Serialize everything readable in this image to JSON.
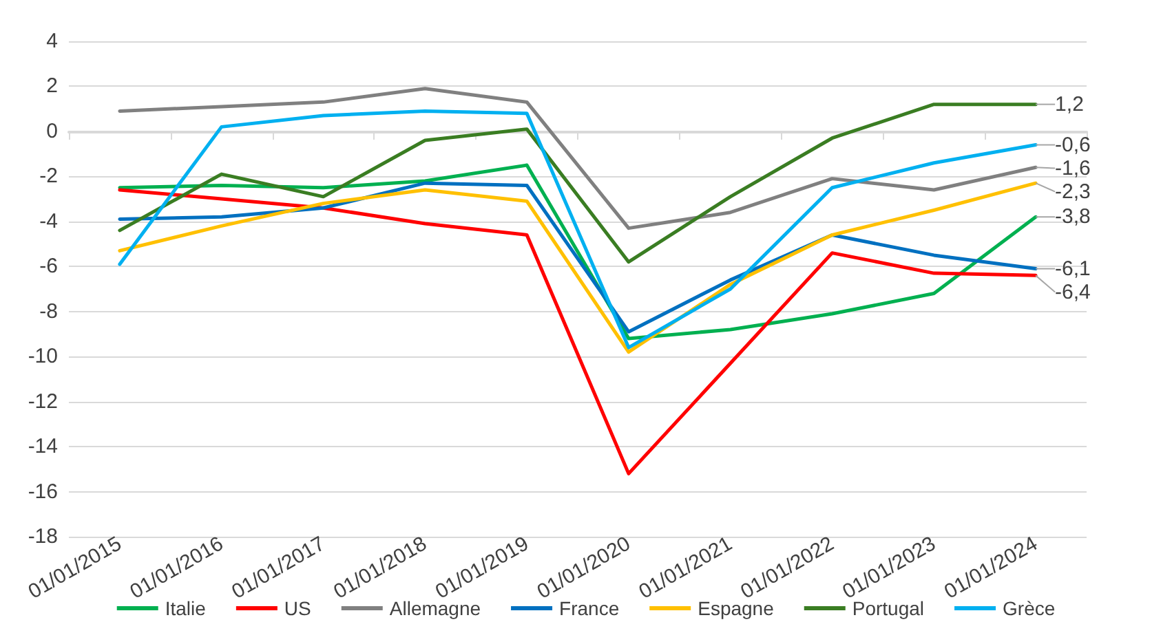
{
  "chart_data": {
    "type": "line",
    "categories": [
      "01/01/2015",
      "01/01/2016",
      "01/01/2017",
      "01/01/2018",
      "01/01/2019",
      "01/01/2020",
      "01/01/2021",
      "01/01/2022",
      "01/01/2023",
      "01/01/2024"
    ],
    "series": [
      {
        "name": "Italie",
        "color": "#00b050",
        "values": [
          -2.5,
          -2.4,
          -2.5,
          -2.2,
          -1.5,
          -9.2,
          -8.8,
          -8.1,
          -7.2,
          -3.8
        ],
        "value_labels": [
          null,
          null,
          null,
          null,
          null,
          null,
          null,
          null,
          null,
          "-3,8"
        ]
      },
      {
        "name": "US",
        "color": "#ff0000",
        "values": [
          -2.6,
          -3.0,
          -3.4,
          -4.1,
          -4.6,
          -15.2,
          -10.3,
          -5.4,
          -6.3,
          -6.4
        ],
        "value_labels": [
          null,
          null,
          null,
          null,
          null,
          null,
          null,
          null,
          null,
          "-6,4"
        ]
      },
      {
        "name": "Allemagne",
        "color": "#808080",
        "values": [
          0.9,
          1.1,
          1.3,
          1.9,
          1.3,
          -4.3,
          -3.6,
          -2.1,
          -2.6,
          -1.6
        ],
        "value_labels": [
          null,
          null,
          null,
          null,
          null,
          null,
          null,
          null,
          null,
          "-1,6"
        ]
      },
      {
        "name": "France",
        "color": "#0070c0",
        "values": [
          -3.9,
          -3.8,
          -3.4,
          -2.3,
          -2.4,
          -8.9,
          -6.6,
          -4.6,
          -5.5,
          -6.1
        ],
        "value_labels": [
          null,
          null,
          null,
          null,
          null,
          null,
          null,
          null,
          null,
          "-6,1"
        ]
      },
      {
        "name": "Espagne",
        "color": "#ffc000",
        "values": [
          -5.3,
          -4.2,
          -3.2,
          -2.6,
          -3.1,
          -9.8,
          -6.8,
          -4.6,
          -3.5,
          -2.3
        ],
        "value_labels": [
          null,
          null,
          null,
          null,
          null,
          null,
          null,
          null,
          null,
          "-2,3"
        ]
      },
      {
        "name": "Portugal",
        "color": "#3a7d22",
        "values": [
          -4.4,
          -1.9,
          -2.9,
          -0.4,
          0.1,
          -5.8,
          -2.9,
          -0.3,
          1.2,
          1.2
        ],
        "value_labels": [
          null,
          null,
          null,
          null,
          null,
          null,
          null,
          null,
          null,
          "1,2"
        ]
      },
      {
        "name": "Grèce",
        "color": "#00b0f0",
        "values": [
          -5.9,
          0.2,
          0.7,
          0.9,
          0.8,
          -9.6,
          -7.0,
          -2.5,
          -1.4,
          -0.6
        ],
        "value_labels": [
          null,
          null,
          null,
          null,
          null,
          null,
          null,
          null,
          null,
          "-0,6"
        ]
      }
    ],
    "ylim": [
      -18,
      4
    ],
    "yticks": [
      -18,
      -16,
      -14,
      -12,
      -10,
      -8,
      -6,
      -4,
      -2,
      0,
      2,
      4
    ],
    "grid": "y",
    "legend": "bottom",
    "marker": "none",
    "line_style": "solid"
  }
}
